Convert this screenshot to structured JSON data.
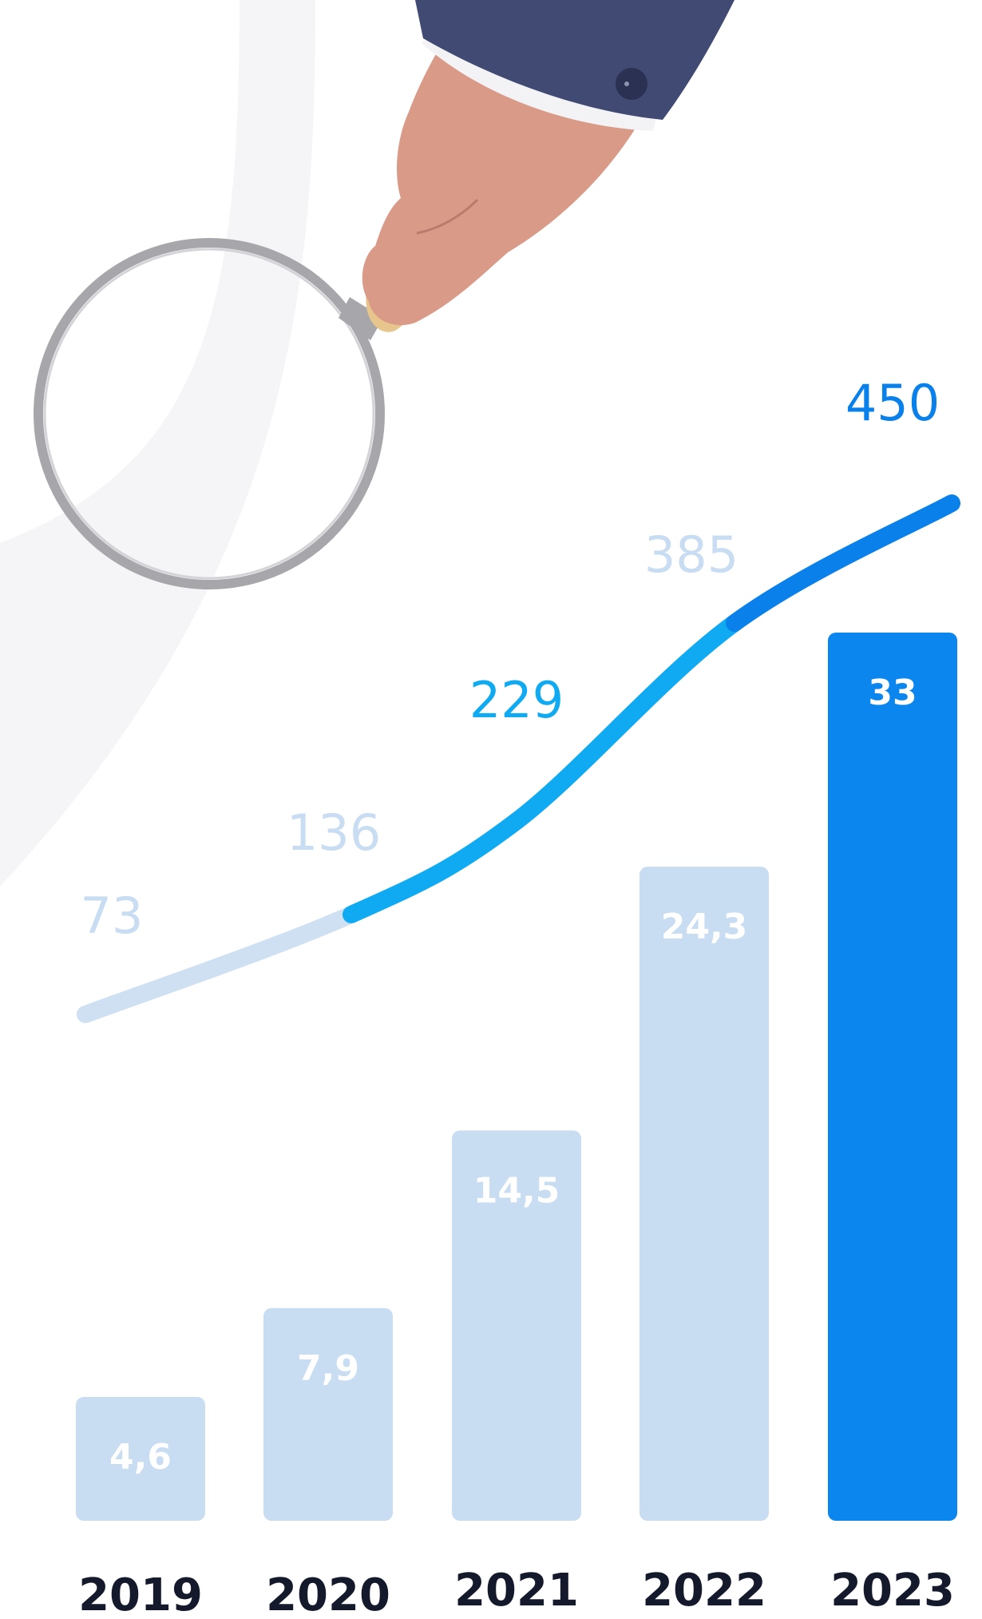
{
  "colors": {
    "background": "#ffffff",
    "background_swoosh": "#f5f5f7",
    "bar_muted": "#c8dcf2",
    "bar_highlight": "#0a86ee",
    "bar_label": "#ffffff",
    "line_light": "#cfe0f3",
    "line_mid": "#10aaf3",
    "line_dark": "#0a80ea",
    "line_label_muted": "#c8dcf2",
    "line_label_mid": "#10aaf3",
    "line_label_dark": "#0a80ea",
    "year_label": "#141a2c"
  },
  "illustration": {
    "name": "hand-holding-magnifying-glass",
    "colors": {
      "sleeve": "#404a73",
      "cuff": "#f3f3f6",
      "skin": "#d99a88",
      "handle": "#e7c58c",
      "rim": "#a7a7ab"
    }
  },
  "chart_data": {
    "type": "bar",
    "categories": [
      "2019",
      "2020",
      "2021",
      "2022",
      "2023"
    ],
    "series": [
      {
        "type": "bar",
        "values": [
          4.6,
          7.9,
          14.5,
          24.3,
          33
        ],
        "labels": [
          "4,6",
          "7,9",
          "14,5",
          "24,3",
          "33"
        ],
        "highlight_index": 4
      },
      {
        "type": "line",
        "values": [
          73,
          136,
          229,
          385,
          450
        ],
        "labels": [
          "73",
          "136",
          "229",
          "385",
          "450"
        ],
        "label_tones": [
          "muted",
          "muted",
          "mid",
          "muted",
          "dark"
        ],
        "segment_tones": [
          "light",
          "mid",
          "mid",
          "dark"
        ]
      }
    ],
    "title": "",
    "xlabel": "",
    "ylabel": "",
    "grid": false,
    "legend": "none"
  }
}
